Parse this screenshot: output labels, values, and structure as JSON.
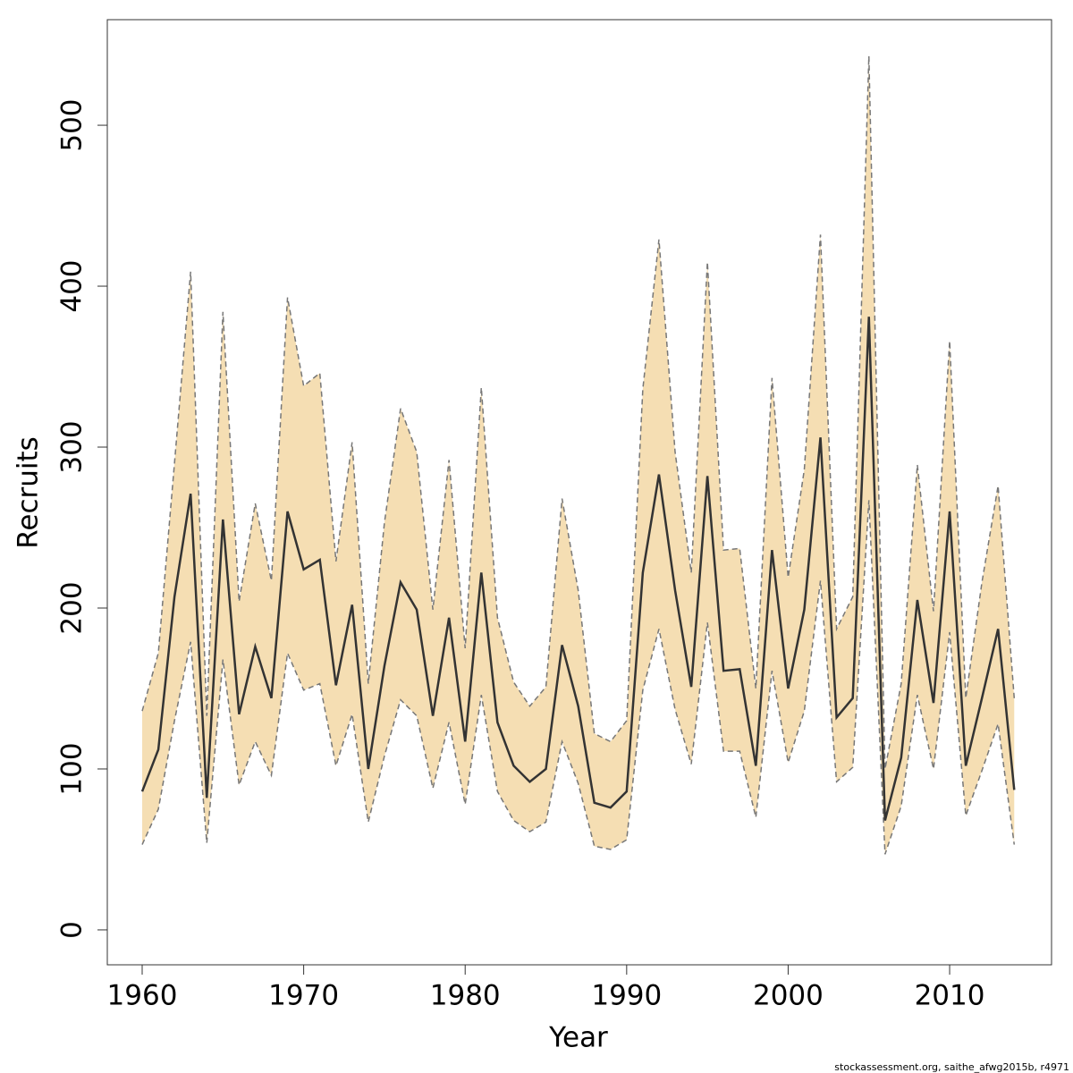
{
  "chart_data": {
    "type": "line",
    "x_label": "Year",
    "y_label": "Recruits",
    "footer": "stockassessment.org, saithe_afwg2015b, r4971",
    "x": [
      1960,
      1961,
      1962,
      1963,
      1964,
      1965,
      1966,
      1967,
      1968,
      1969,
      1970,
      1971,
      1972,
      1973,
      1974,
      1975,
      1976,
      1977,
      1978,
      1979,
      1980,
      1981,
      1982,
      1983,
      1984,
      1985,
      1986,
      1987,
      1988,
      1989,
      1990,
      1991,
      1992,
      1993,
      1994,
      1995,
      1996,
      1997,
      1998,
      1999,
      2000,
      2001,
      2002,
      2003,
      2004,
      2005,
      2006,
      2007,
      2008,
      2009,
      2010,
      2011,
      2012,
      2013,
      2014
    ],
    "values": [
      86,
      112,
      207,
      271,
      82,
      255,
      134,
      176,
      144,
      260,
      224,
      230,
      152,
      202,
      100,
      164,
      216,
      199,
      133,
      194,
      117,
      222,
      129,
      102,
      92,
      100,
      177,
      139,
      79,
      76,
      86,
      222,
      283,
      211,
      151,
      282,
      161,
      162,
      102,
      236,
      150,
      199,
      306,
      132,
      144,
      381,
      68,
      107,
      205,
      141,
      260,
      102,
      144,
      187,
      87
    ],
    "upper": [
      136,
      172,
      290,
      409,
      133,
      384,
      204,
      265,
      217,
      393,
      338,
      346,
      229,
      303,
      153,
      253,
      324,
      297,
      199,
      292,
      175,
      337,
      194,
      154,
      139,
      151,
      268,
      211,
      122,
      117,
      130,
      336,
      429,
      297,
      222,
      415,
      236,
      237,
      150,
      343,
      219,
      286,
      432,
      187,
      207,
      543,
      100,
      153,
      289,
      198,
      366,
      144,
      216,
      276,
      144
    ],
    "lower": [
      53,
      75,
      130,
      179,
      54,
      168,
      90,
      117,
      96,
      172,
      149,
      153,
      102,
      134,
      67,
      108,
      143,
      133,
      88,
      129,
      78,
      146,
      86,
      68,
      61,
      67,
      117,
      91,
      52,
      50,
      56,
      149,
      187,
      137,
      103,
      191,
      111,
      111,
      70,
      161,
      104,
      136,
      217,
      92,
      101,
      267,
      47,
      77,
      146,
      100,
      185,
      71,
      99,
      128,
      53
    ],
    "line_color": "#333333",
    "band_color": "#f5deb3",
    "band_edge_color": "#777777",
    "xlim": [
      1957.84,
      2016.31
    ],
    "ylim": [
      -21.7,
      565.6
    ],
    "xticks": [
      1960,
      1970,
      1980,
      1990,
      2000,
      2010
    ],
    "yticks": [
      0,
      100,
      200,
      300,
      400,
      500
    ]
  }
}
